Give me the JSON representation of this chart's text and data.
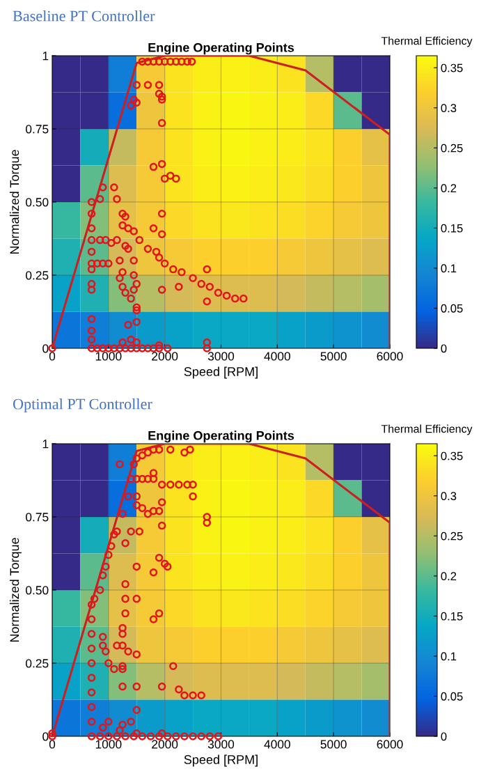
{
  "chart_data": [
    {
      "type": "heatmap",
      "title": "Baseline PT Controller",
      "subtitle": "Engine Operating Points",
      "xlabel": "Speed [RPM]",
      "ylabel": "Normalized Torque",
      "clabel": "Thermal Efficiency",
      "cells": [
        [
          0,
          0,
          0.08,
          0.31,
          0.34,
          0.35,
          0.355,
          0.35,
          0.34,
          0.25,
          0,
          0
        ],
        [
          0,
          0,
          0.06,
          0.3,
          0.34,
          0.355,
          0.36,
          0.355,
          0.35,
          0.33,
          0.2,
          0
        ],
        [
          0,
          0.15,
          0.26,
          0.31,
          0.34,
          0.355,
          0.36,
          0.355,
          0.35,
          0.34,
          0.32,
          0.29
        ],
        [
          0,
          0.2,
          0.28,
          0.31,
          0.34,
          0.35,
          0.355,
          0.35,
          0.345,
          0.335,
          0.32,
          0.3
        ],
        [
          0.18,
          0.22,
          0.29,
          0.31,
          0.33,
          0.34,
          0.345,
          0.34,
          0.335,
          0.325,
          0.31,
          0.3
        ],
        [
          0.16,
          0.2,
          0.27,
          0.3,
          0.31,
          0.32,
          0.32,
          0.32,
          0.31,
          0.3,
          0.29,
          0.28
        ],
        [
          0.13,
          0.16,
          0.22,
          0.25,
          0.27,
          0.28,
          0.28,
          0.28,
          0.27,
          0.26,
          0.25,
          0.24
        ],
        [
          0.07,
          0.08,
          0.1,
          0.12,
          0.13,
          0.14,
          0.14,
          0.14,
          0.13,
          0.12,
          0.11,
          0.1
        ]
      ],
      "clim": [
        0,
        0.365
      ],
      "cticks": [
        0,
        0.05,
        0.1,
        0.15,
        0.2,
        0.25,
        0.3,
        0.35
      ],
      "xlim": [
        0,
        6000
      ],
      "xticks": [
        0,
        1000,
        2000,
        3000,
        4000,
        5000,
        6000
      ],
      "ylim": [
        0,
        1
      ],
      "yticks": [
        0,
        0.25,
        {
          "value": 0.5,
          "label": "0.50"
        },
        0.75,
        1
      ],
      "grid": true,
      "series": [
        {
          "type": "line",
          "color": "#cc1f1f",
          "x": [
            0,
            1500,
            2000,
            3500,
            4500,
            6000,
            6000
          ],
          "values": [
            0,
            0.975,
            1,
            1,
            0.95,
            0.73,
            0
          ]
        },
        {
          "type": "scatter",
          "color": "#e3151a",
          "marker": "circle",
          "x": [
            0,
            700,
            700,
            700,
            700,
            700,
            700,
            700,
            700,
            700,
            700,
            700,
            700,
            700,
            1600,
            1700,
            1800,
            1900,
            2000,
            2100,
            2200,
            2300,
            2400,
            2480,
            1500,
            1450,
            1400,
            1500,
            1700,
            1900,
            1900,
            1950,
            1950,
            1950,
            1800,
            1950,
            2000,
            2100,
            2200,
            900,
            1100,
            1150,
            850,
            1250,
            1300,
            1250,
            1350,
            1450,
            1550,
            1700,
            1850,
            1900,
            2000,
            2150,
            2300,
            2500,
            2650,
            2800,
            2950,
            3100,
            3250,
            3400,
            850,
            950,
            1050,
            1150,
            1300,
            1350,
            800,
            900,
            1000,
            1200,
            1250,
            1200,
            1250,
            1300,
            1450,
            1450,
            1500,
            1450,
            1400,
            1500,
            1500,
            1350,
            1500,
            1800,
            1950,
            1950,
            1950,
            2250,
            2750,
            2750,
            800,
            900,
            1000,
            1100,
            1200,
            1300,
            1400,
            1500,
            1600,
            1700,
            1800,
            1900,
            2050,
            1250,
            1400,
            1500,
            1900,
            2750,
            2750
          ],
          "values": [
            0,
            0,
            0.03,
            0.06,
            0.1,
            0.2,
            0.22,
            0.27,
            0.29,
            0.33,
            0.37,
            0.41,
            0.46,
            0.5,
            0.98,
            0.98,
            0.98,
            0.98,
            0.98,
            0.98,
            0.98,
            0.98,
            0.98,
            0.98,
            0.9,
            0.85,
            0.83,
            0.84,
            0.9,
            0.9,
            0.87,
            0.86,
            0.85,
            0.77,
            0.62,
            0.63,
            0.58,
            0.59,
            0.58,
            0.55,
            0.55,
            0.51,
            0.51,
            0.46,
            0.45,
            0.42,
            0.41,
            0.4,
            0.37,
            0.34,
            0.33,
            0.31,
            0.29,
            0.27,
            0.26,
            0.24,
            0.22,
            0.21,
            0.19,
            0.18,
            0.17,
            0.17,
            0.37,
            0.37,
            0.36,
            0.37,
            0.35,
            0.34,
            0.29,
            0.29,
            0.29,
            0.3,
            0.26,
            0.24,
            0.21,
            0.19,
            0.3,
            0.25,
            0.22,
            0.2,
            0.17,
            0.14,
            0.13,
            0.08,
            0.09,
            0.41,
            0.39,
            0.46,
            0.2,
            0.21,
            0.27,
            0.16,
            0,
            0,
            0,
            0,
            0,
            0,
            0,
            0,
            0,
            0,
            0,
            0,
            0,
            0.02,
            0.03,
            0.02,
            0.01,
            0,
            0.02
          ]
        }
      ]
    },
    {
      "type": "heatmap",
      "title": "Optimal PT Controller",
      "subtitle": "Engine Operating Points",
      "xlabel": "Speed [RPM]",
      "ylabel": "Normalized Torque",
      "clabel": "Thermal Efficiency",
      "cells": [
        [
          0,
          0,
          0.08,
          0.31,
          0.34,
          0.35,
          0.355,
          0.35,
          0.34,
          0.25,
          0,
          0
        ],
        [
          0,
          0,
          0.06,
          0.3,
          0.34,
          0.355,
          0.36,
          0.355,
          0.35,
          0.33,
          0.2,
          0
        ],
        [
          0,
          0.15,
          0.26,
          0.31,
          0.34,
          0.355,
          0.36,
          0.355,
          0.35,
          0.34,
          0.32,
          0.29
        ],
        [
          0,
          0.2,
          0.28,
          0.31,
          0.34,
          0.35,
          0.355,
          0.35,
          0.345,
          0.335,
          0.32,
          0.3
        ],
        [
          0.18,
          0.22,
          0.29,
          0.31,
          0.33,
          0.34,
          0.345,
          0.34,
          0.335,
          0.325,
          0.31,
          0.3
        ],
        [
          0.16,
          0.2,
          0.27,
          0.3,
          0.31,
          0.32,
          0.32,
          0.32,
          0.31,
          0.3,
          0.29,
          0.28
        ],
        [
          0.13,
          0.16,
          0.22,
          0.25,
          0.27,
          0.28,
          0.28,
          0.28,
          0.27,
          0.26,
          0.25,
          0.24
        ],
        [
          0.07,
          0.08,
          0.1,
          0.12,
          0.13,
          0.14,
          0.14,
          0.14,
          0.13,
          0.12,
          0.11,
          0.1
        ]
      ],
      "clim": [
        0,
        0.365
      ],
      "cticks": [
        0,
        0.05,
        0.1,
        0.15,
        0.2,
        0.25,
        0.3,
        0.35
      ],
      "xlim": [
        0,
        6000
      ],
      "xticks": [
        0,
        1000,
        2000,
        3000,
        4000,
        5000,
        6000
      ],
      "ylim": [
        0,
        1
      ],
      "yticks": [
        0,
        0.25,
        {
          "value": 0.5,
          "label": "0.50"
        },
        0.75,
        1
      ],
      "grid": true,
      "series": [
        {
          "type": "line",
          "color": "#cc1f1f",
          "x": [
            0,
            1500,
            2000,
            3500,
            4500,
            6000,
            6000
          ],
          "values": [
            0,
            0.975,
            1,
            1,
            0.95,
            0.73,
            0
          ]
        },
        {
          "type": "scatter",
          "color": "#e3151a",
          "marker": "circle",
          "x": [
            0,
            0,
            700,
            700,
            700,
            700,
            700,
            700,
            700,
            700,
            700,
            700,
            750,
            850,
            900,
            950,
            1000,
            1050,
            1100,
            1150,
            1250,
            1350,
            1400,
            1450,
            1500,
            1600,
            1700,
            1800,
            1900,
            2100,
            2350,
            2450,
            1200,
            1800,
            1500,
            1600,
            1700,
            1800,
            1950,
            2100,
            2250,
            2400,
            2500,
            2500,
            1500,
            1500,
            1600,
            1700,
            1800,
            1900,
            1950,
            1950,
            2750,
            2750,
            1400,
            1550,
            1300,
            1900,
            2000,
            2050,
            1500,
            1800,
            1300,
            1300,
            1500,
            1300,
            1800,
            1900,
            1250,
            1250,
            1150,
            1250,
            1350,
            1500,
            900,
            900,
            950,
            1000,
            1100,
            1250,
            1250,
            1250,
            1500,
            1950,
            2150,
            2250,
            2350,
            2500,
            2650,
            1500,
            1000,
            1250,
            1400,
            900,
            1200,
            1500,
            1950,
            850,
            1000,
            1150,
            1300,
            1450,
            1600,
            1750,
            1900,
            2050,
            2200,
            2350,
            2500,
            2650,
            2800,
            2950
          ],
          "values": [
            0.01,
            0,
            0,
            0.05,
            0.1,
            0.15,
            0.2,
            0.25,
            0.3,
            0.35,
            0.4,
            0.45,
            0.47,
            0.5,
            0.55,
            0.58,
            0.62,
            0.65,
            0.69,
            0.7,
            0.76,
            0.82,
            0.88,
            0.93,
            0.95,
            0.96,
            0.97,
            0.98,
            0.98,
            0.98,
            0.97,
            0.98,
            0.93,
            0.9,
            0.88,
            0.88,
            0.88,
            0.88,
            0.86,
            0.86,
            0.86,
            0.86,
            0.86,
            0.82,
            0.82,
            0.79,
            0.78,
            0.76,
            0.77,
            0.77,
            0.8,
            0.72,
            0.75,
            0.73,
            0.7,
            0.7,
            0.66,
            0.61,
            0.59,
            0.58,
            0.58,
            0.56,
            0.52,
            0.47,
            0.47,
            0.42,
            0.4,
            0.42,
            0.37,
            0.35,
            0.31,
            0.31,
            0.29,
            0.28,
            0.34,
            0.31,
            0.29,
            0.25,
            0.23,
            0.24,
            0.23,
            0.17,
            0.17,
            0.17,
            0.24,
            0.16,
            0.14,
            0.14,
            0.14,
            0.09,
            0.05,
            0.04,
            0.05,
            0.03,
            0.02,
            0.01,
            0.01,
            0,
            0,
            0,
            0,
            0,
            0,
            0,
            0,
            0,
            0,
            0,
            0,
            0,
            0,
            0
          ]
        }
      ]
    }
  ]
}
